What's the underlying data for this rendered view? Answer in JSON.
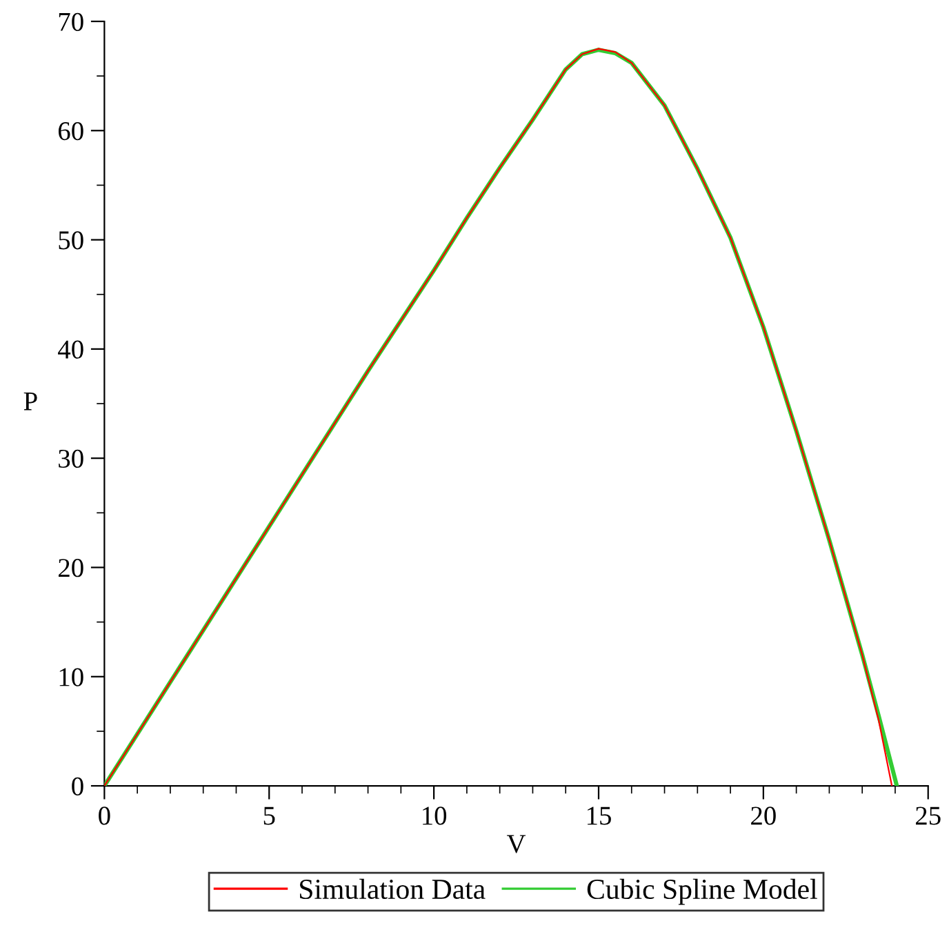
{
  "chart_data": {
    "type": "line",
    "xlabel": "V",
    "ylabel": "P",
    "xlim": [
      0,
      25
    ],
    "ylim": [
      0,
      70
    ],
    "xticks": [
      0,
      5,
      10,
      15,
      20,
      25
    ],
    "yticks": [
      0,
      10,
      20,
      30,
      40,
      50,
      60,
      70
    ],
    "grid": false,
    "legend": "bottom",
    "marker": "none",
    "line_style": "solid",
    "series": [
      {
        "name": "Simulation Data",
        "color": "#ff0000",
        "x": [
          0,
          2,
          4,
          6,
          8,
          10,
          11,
          12,
          13,
          14,
          14.5,
          15,
          15.5,
          16,
          17,
          18,
          19,
          20,
          21,
          22,
          23,
          23.5,
          23.9
        ],
        "values": [
          0,
          9.5,
          19.0,
          28.5,
          38.0,
          47.2,
          52.0,
          56.6,
          61.0,
          65.6,
          67.0,
          67.5,
          67.2,
          66.2,
          62.3,
          56.5,
          50.2,
          42.0,
          32.5,
          22.5,
          12.0,
          6.0,
          0
        ]
      },
      {
        "name": "Cubic Spline Model",
        "color": "#33cc33",
        "x": [
          0,
          2,
          4,
          6,
          8,
          10,
          11,
          12,
          13,
          14,
          14.5,
          15,
          15.5,
          16,
          17,
          18,
          19,
          20,
          21,
          22,
          23,
          23.5,
          24.05
        ],
        "values": [
          0,
          9.5,
          19.0,
          28.5,
          38.0,
          47.2,
          52.0,
          56.6,
          61.0,
          65.6,
          67.0,
          67.4,
          67.1,
          66.2,
          62.3,
          56.5,
          50.2,
          42.0,
          32.5,
          22.5,
          12.0,
          6.4,
          0
        ]
      }
    ]
  }
}
